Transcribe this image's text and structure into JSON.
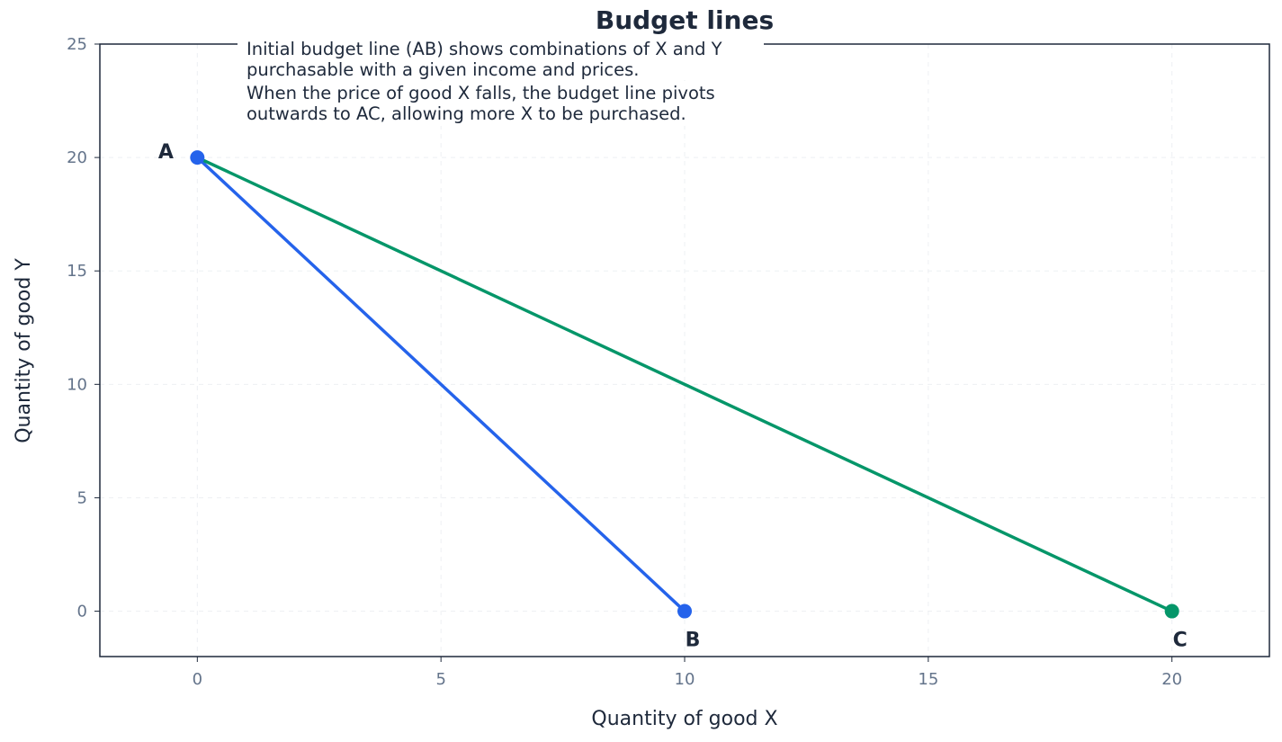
{
  "chart_data": {
    "type": "line",
    "title": "Budget lines",
    "xlabel": "Quantity of good X",
    "ylabel": "Quantity of good Y",
    "xlim": [
      -2,
      22
    ],
    "ylim": [
      -2,
      25
    ],
    "xticks": [
      0,
      5,
      10,
      15,
      20
    ],
    "yticks": [
      0,
      5,
      10,
      15,
      20,
      25
    ],
    "grid": true,
    "series": [
      {
        "points": [
          [
            0,
            20
          ],
          [
            10,
            0
          ]
        ],
        "color": "#2563eb"
      },
      {
        "points": [
          [
            0,
            20
          ],
          [
            20,
            0
          ]
        ],
        "color": "#059669"
      }
    ],
    "markers": [
      {
        "label": "A",
        "x": 0,
        "y": 20,
        "color": "#2563eb"
      },
      {
        "label": "B",
        "x": 10,
        "y": 0,
        "color": "#2563eb"
      },
      {
        "label": "C",
        "x": 20,
        "y": 0,
        "color": "#059669"
      }
    ],
    "annotations": [
      {
        "lines": [
          "Initial budget line (AB) shows combinations of X and Y",
          "purchasable with a given income and prices."
        ]
      },
      {
        "lines": [
          "When the price of good X falls, the budget line pivots",
          "outwards to AC, allowing more X to be purchased."
        ]
      }
    ]
  }
}
